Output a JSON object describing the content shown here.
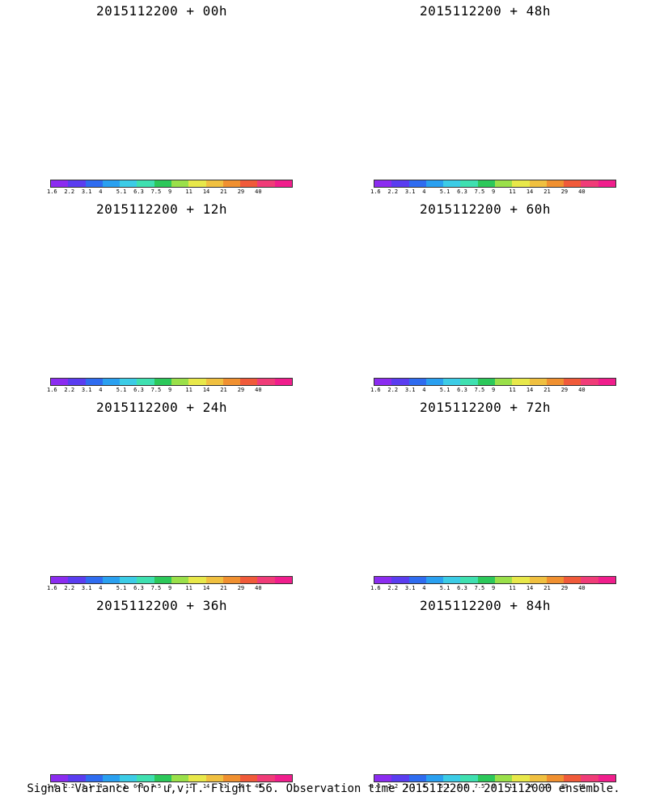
{
  "panels": [
    {
      "title": "2015112200 + 00h",
      "fill": 0
    },
    {
      "title": "2015112200 + 48h",
      "fill": 3
    },
    {
      "title": "2015112200 + 12h",
      "fill": 1
    },
    {
      "title": "2015112200 + 60h",
      "fill": 4
    },
    {
      "title": "2015112200 + 24h",
      "fill": 2
    },
    {
      "title": "2015112200 + 72h",
      "fill": 5
    },
    {
      "title": "2015112200 + 36h",
      "fill": 3
    },
    {
      "title": "2015112200 + 84h",
      "fill": 6
    }
  ],
  "colorbar": {
    "colors": [
      "#8b2cf0",
      "#5a3df0",
      "#2f6cf0",
      "#2aa0f0",
      "#3ccce6",
      "#3fe0b0",
      "#2cc85a",
      "#9ae04a",
      "#e8e84a",
      "#f0c040",
      "#f09030",
      "#f05a3a",
      "#f03c78",
      "#f01e8c"
    ],
    "labels": [
      "1.6",
      "2.2",
      "3.1",
      "4",
      "5.1",
      "6.3",
      "7.5",
      "9",
      "11",
      "14",
      "21",
      "29",
      "40"
    ]
  },
  "footer": "Signal Variance for u,v,T. Flight 56. Observation time 2015112200. 2015112000 ensemble."
}
